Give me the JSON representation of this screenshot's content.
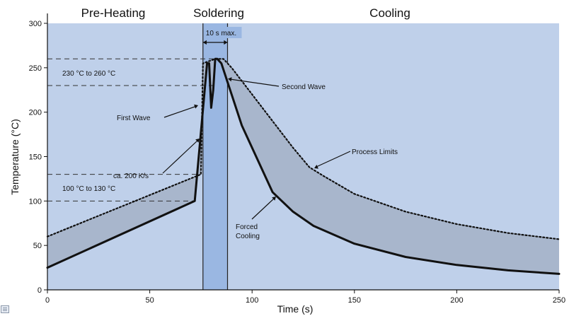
{
  "chart_data": {
    "type": "line",
    "xlabel": "Time (s)",
    "ylabel": "Temperature (°C)",
    "xlim": [
      0,
      250
    ],
    "ylim": [
      0,
      300
    ],
    "xticks": [
      0,
      50,
      100,
      150,
      200,
      250
    ],
    "yticks": [
      0,
      50,
      100,
      150,
      200,
      250,
      300
    ],
    "phases": [
      {
        "label": "Pre-Heating",
        "x_from": 0,
        "x_to": 76
      },
      {
        "label": "Soldering",
        "x_from": 76,
        "x_to": 88
      },
      {
        "label": "Cooling",
        "x_from": 88,
        "x_to": 250
      }
    ],
    "series": [
      {
        "style": "solid",
        "x": [
          0,
          72,
          78,
          79,
          80,
          81,
          82,
          83,
          85,
          95,
          110,
          120,
          130,
          150,
          175,
          200,
          225,
          250
        ],
        "y": [
          25,
          100,
          255,
          255,
          205,
          225,
          260,
          260,
          255,
          185,
          110,
          88,
          72,
          52,
          37,
          28,
          22,
          18
        ]
      },
      {
        "style": "dotted",
        "x": [
          0,
          75,
          76,
          82,
          86,
          90,
          100,
          110,
          120,
          128,
          135,
          150,
          175,
          200,
          225,
          250
        ],
        "y": [
          60,
          130,
          255,
          260,
          260,
          250,
          220,
          190,
          160,
          138,
          128,
          108,
          88,
          74,
          64,
          57
        ]
      }
    ],
    "reference_lines": [
      {
        "y": 260,
        "x_to": 82
      },
      {
        "y": 230,
        "x_to": 82
      },
      {
        "y": 130,
        "x_to": 75
      },
      {
        "y": 100,
        "x_to": 72
      }
    ],
    "annotations": {
      "dimension": "10 s max.",
      "range_high": "230 °C to 260 °C",
      "range_low": "100 °C to 130 °C",
      "first_wave": "First Wave",
      "second_wave": "Second Wave",
      "ramp_rate": "ca. 200 K/s",
      "process_limits": "Process Limits",
      "forced_cooling": [
        "Forced",
        "Cooling"
      ]
    },
    "colors": {
      "plot_background": "#bfd0ea",
      "soldering_band": "#9ab7e2",
      "process_window": "#a8b6cc",
      "grid_line": "#3a3a3a"
    }
  }
}
